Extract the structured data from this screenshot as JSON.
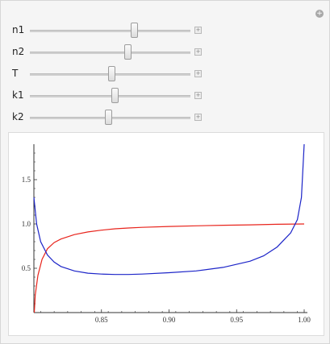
{
  "sliders": [
    {
      "label": "n1",
      "position": 0.656
    },
    {
      "label": "n2",
      "position": 0.616
    },
    {
      "label": "T",
      "position": 0.513
    },
    {
      "label": "k1",
      "position": 0.533
    },
    {
      "label": "k2",
      "position": 0.487
    }
  ],
  "expand_glyph": "+",
  "corner_glyph": "+",
  "chart_data": {
    "type": "line",
    "title": "",
    "xlabel": "",
    "ylabel": "",
    "xlim": [
      0.8,
      1.0
    ],
    "ylim": [
      0,
      1.9
    ],
    "xticks": [
      {
        "value": 0.85,
        "label": "0.85"
      },
      {
        "value": 0.9,
        "label": "0.90"
      },
      {
        "value": 0.95,
        "label": "0.95"
      },
      {
        "value": 1.0,
        "label": "1.00"
      }
    ],
    "yticks": [
      {
        "value": 0.5,
        "label": "0.5"
      },
      {
        "value": 1.0,
        "label": "1.0"
      },
      {
        "value": 1.5,
        "label": "1.5"
      }
    ],
    "series": [
      {
        "color": "#e8241c",
        "x": [
          0.8003,
          0.801,
          0.803,
          0.806,
          0.81,
          0.815,
          0.82,
          0.83,
          0.84,
          0.85,
          0.86,
          0.87,
          0.88,
          0.9,
          0.92,
          0.94,
          0.96,
          0.98,
          1.0
        ],
        "y": [
          0.0,
          0.2,
          0.42,
          0.6,
          0.72,
          0.79,
          0.83,
          0.88,
          0.91,
          0.93,
          0.945,
          0.955,
          0.962,
          0.972,
          0.979,
          0.985,
          0.99,
          0.996,
          1.0
        ]
      },
      {
        "color": "#1c24c8",
        "x": [
          0.8,
          0.802,
          0.805,
          0.81,
          0.815,
          0.82,
          0.83,
          0.84,
          0.85,
          0.86,
          0.87,
          0.88,
          0.9,
          0.92,
          0.94,
          0.96,
          0.97,
          0.98,
          0.99,
          0.995,
          0.998,
          1.0
        ],
        "y": [
          1.3,
          1.0,
          0.8,
          0.65,
          0.57,
          0.52,
          0.47,
          0.445,
          0.435,
          0.43,
          0.43,
          0.435,
          0.45,
          0.47,
          0.51,
          0.58,
          0.64,
          0.74,
          0.9,
          1.05,
          1.3,
          1.9
        ]
      }
    ]
  }
}
